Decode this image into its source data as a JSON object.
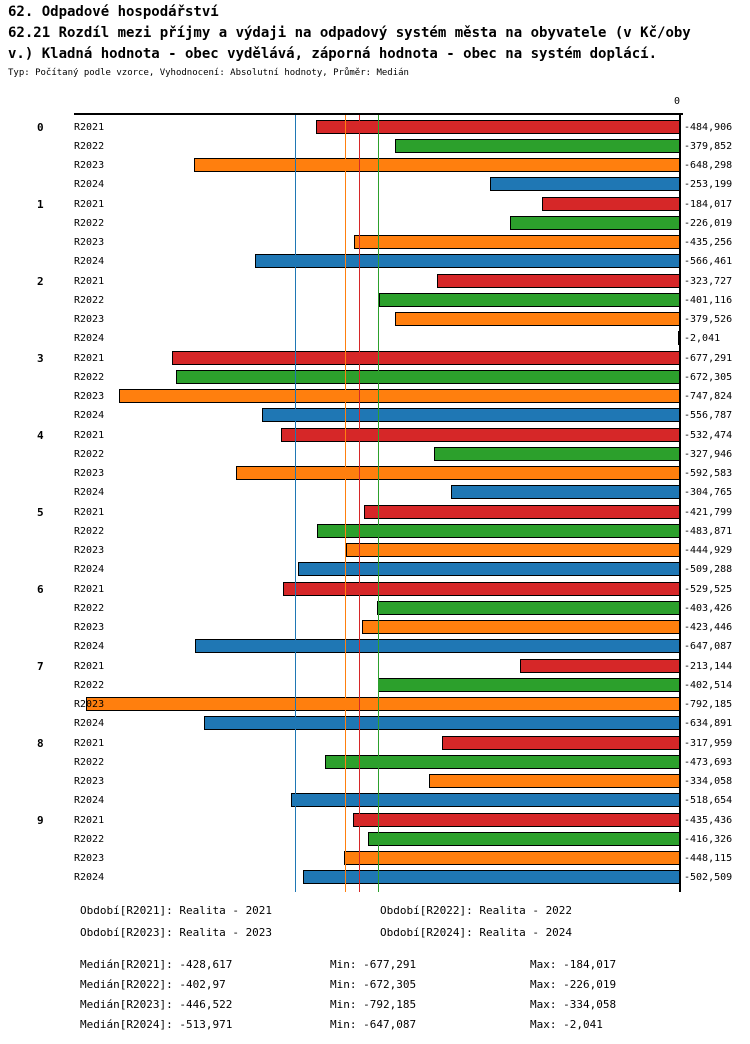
{
  "title": {
    "line1": "62. Odpadové hospodářství",
    "line2a": "62.21 Rozdíl mezi příjmy a výdaji na odpadový systém města na obyvatele (v Kč/oby",
    "line2b": "v.) Kladná hodnota - obec vydělává, záporná hodnota - obec na systém doplácí.",
    "meta": "Typ: Počítaný podle vzorce, Vyhodnocení: Absolutní hodnoty, Průměr: Medián"
  },
  "chart_data": {
    "type": "bar",
    "orientation": "horizontal",
    "unit": "Kč/obyv.",
    "axis_zero_label": "0",
    "xlim": [
      -800,
      0
    ],
    "grid": false,
    "categories": [
      "0",
      "1",
      "2",
      "3",
      "4",
      "5",
      "6",
      "7",
      "8",
      "9"
    ],
    "series": [
      {
        "name": "R2021",
        "color": "#d62728",
        "median": -428.617,
        "values": [
          -484.906,
          -184.017,
          -323.727,
          -677.291,
          -532.474,
          -421.799,
          -529.525,
          -213.144,
          -317.959,
          -435.436
        ],
        "labels": [
          "-484,906",
          "-184,017",
          "-323,727",
          "-677,291",
          "-532,474",
          "-421,799",
          "-529,525",
          "-213,144",
          "-317,959",
          "-435,436"
        ]
      },
      {
        "name": "R2022",
        "color": "#2ca02c",
        "median": -402.97,
        "values": [
          -379.852,
          -226.019,
          -401.116,
          -672.305,
          -327.946,
          -483.871,
          -403.426,
          -402.514,
          -473.693,
          -416.326
        ],
        "labels": [
          "-379,852",
          "-226,019",
          "-401,116",
          "-672,305",
          "-327,946",
          "-483,871",
          "-403,426",
          "-402,514",
          "-473,693",
          "-416,326"
        ]
      },
      {
        "name": "R2023",
        "color": "#ff7f0e",
        "median": -446.522,
        "values": [
          -648.298,
          -435.256,
          -379.526,
          -747.824,
          -592.583,
          -444.929,
          -423.446,
          -792.185,
          -334.058,
          -448.115
        ],
        "labels": [
          "-648,298",
          "-435,256",
          "-379,526",
          "-747,824",
          "-592,583",
          "-444,929",
          "-423,446",
          "-792,185",
          "-334,058",
          "-448,115"
        ]
      },
      {
        "name": "R2024",
        "color": "#1f77b4",
        "median": -513.971,
        "values": [
          -253.199,
          -566.461,
          -2.041,
          -556.787,
          -304.765,
          -509.288,
          -647.087,
          -634.891,
          -518.654,
          -502.509
        ],
        "labels": [
          "-253,199",
          "-566,461",
          "-2,041",
          "-556,787",
          "-304,765",
          "-509,288",
          "-647,087",
          "-634,891",
          "-518,654",
          "-502,509"
        ]
      }
    ]
  },
  "footer": {
    "periods": [
      "Období[R2021]: Realita - 2021",
      "Období[R2022]: Realita - 2022",
      "Období[R2023]: Realita - 2023",
      "Období[R2024]: Realita - 2024"
    ],
    "stats": [
      {
        "median": "Medián[R2021]: -428,617",
        "min": "Min: -677,291",
        "max": "Max: -184,017"
      },
      {
        "median": "Medián[R2022]: -402,97",
        "min": "Min: -672,305",
        "max": "Max: -226,019"
      },
      {
        "median": "Medián[R2023]: -446,522",
        "min": "Min: -792,185",
        "max": "Max: -334,058"
      },
      {
        "median": "Medián[R2024]: -513,971",
        "min": "Min: -647,087",
        "max": "Max: -2,041"
      }
    ]
  }
}
